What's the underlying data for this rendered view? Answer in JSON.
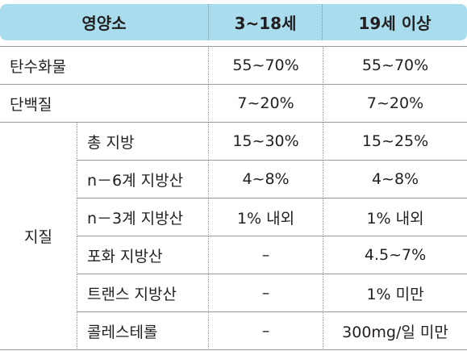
{
  "table": {
    "header": [
      "영양소",
      "3~18세",
      "19세 이상"
    ],
    "rows": [
      [
        "탄수화물",
        "55~70%",
        "55~70%"
      ],
      [
        "단백질",
        "7~20%",
        "7~20%"
      ]
    ],
    "group_label": "지질",
    "group_rows": [
      [
        "총 지방",
        "15~30%",
        "15~25%"
      ],
      [
        "n－6계 지방산",
        "4~8%",
        "4~8%"
      ],
      [
        "n－3계 지방산",
        "1% 내외",
        "1% 내외"
      ],
      [
        "포화 지방산",
        "–",
        "4.5~7%"
      ],
      [
        "트랜스 지방산",
        "–",
        "1% 미만"
      ],
      [
        "콜레스테롤",
        "–",
        "300mg/일 미만"
      ]
    ]
  }
}
